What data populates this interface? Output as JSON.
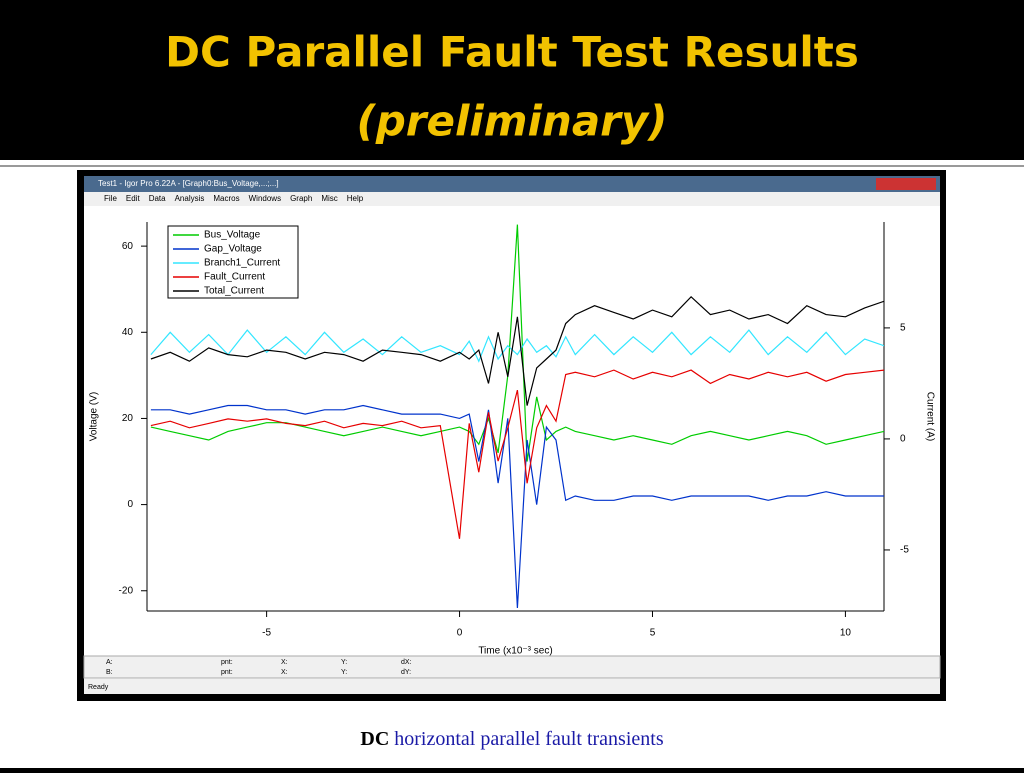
{
  "slide": {
    "title": "DC Parallel Fault Test Results",
    "subtitle": "(preliminary)",
    "caption_bold": "DC",
    "caption": "horizontal parallel fault transients"
  },
  "window": {
    "title": "Test1 - Igor Pro 6.22A - [Graph0:Bus_Voltage,...;...]",
    "menus": [
      "File",
      "Edit",
      "Data",
      "Analysis",
      "Macros",
      "Windows",
      "Graph",
      "Misc",
      "Help"
    ],
    "info": {
      "a": "A:",
      "b": "B:",
      "pnt": "pnt:",
      "x": "X:",
      "y": "Y:",
      "dx": "dX:",
      "dy": "dY:"
    },
    "status": "Ready"
  },
  "chart_data": {
    "type": "line",
    "xlabel": "Time (x10⁻³ sec)",
    "ylabel": "Voltage (V)",
    "y2label": "Current (A)",
    "x": [
      -8,
      -7.5,
      -7,
      -6.5,
      -6,
      -5.5,
      -5,
      -4.5,
      -4,
      -3.5,
      -3,
      -2.5,
      -2,
      -1.5,
      -1,
      -0.5,
      0,
      0.25,
      0.5,
      0.75,
      1,
      1.25,
      1.5,
      1.75,
      2,
      2.25,
      2.5,
      2.75,
      3,
      3.5,
      4,
      4.5,
      5,
      5.5,
      6,
      6.5,
      7,
      7.5,
      8,
      8.5,
      9,
      9.5,
      10,
      10.5,
      11
    ],
    "xlim": [
      -8.1,
      11
    ],
    "xticks": [
      -5,
      0,
      5,
      10
    ],
    "ylim": [
      -24.7,
      65.6
    ],
    "yticks": [
      -20,
      0,
      20,
      40,
      60
    ],
    "y2lim": [
      -7.75,
      9.77
    ],
    "y2ticks": [
      -5,
      0,
      5
    ],
    "series": [
      {
        "name": "Bus_Voltage",
        "color": "#00cc00",
        "values": [
          18,
          17,
          16,
          15,
          17,
          18,
          19,
          19,
          18,
          17,
          16,
          17,
          18,
          17,
          16,
          17,
          18,
          17,
          14,
          20,
          12,
          30,
          65,
          10,
          25,
          15,
          17,
          18,
          17,
          16,
          15,
          16,
          15,
          14,
          16,
          17,
          16,
          15,
          16,
          17,
          16,
          14,
          15,
          16,
          17
        ]
      },
      {
        "name": "Gap_Voltage",
        "color": "#0033cc",
        "values": [
          22,
          22,
          21,
          22,
          23,
          23,
          22,
          22,
          21,
          22,
          22,
          23,
          22,
          21,
          21,
          21,
          20,
          21,
          10,
          22,
          5,
          20,
          -24,
          15,
          0,
          18,
          15,
          1,
          2,
          1,
          1,
          2,
          2,
          1,
          2,
          2,
          2,
          2,
          1,
          2,
          2,
          3,
          2,
          2,
          2
        ]
      },
      {
        "name": "Branch1_Current",
        "color": "#33e6ff",
        "axis": "y2",
        "values": [
          3.8,
          4.8,
          3.9,
          4.7,
          3.8,
          4.9,
          3.9,
          4.6,
          3.8,
          4.8,
          3.9,
          4.5,
          3.8,
          4.6,
          3.9,
          4.2,
          3.8,
          4.4,
          3.5,
          4.6,
          3.6,
          4.2,
          3.8,
          4.5,
          3.9,
          4.2,
          3.7,
          4.6,
          3.8,
          4.7,
          3.8,
          4.6,
          3.9,
          4.8,
          3.8,
          4.6,
          3.9,
          4.9,
          3.8,
          4.6,
          3.9,
          4.8,
          3.8,
          4.5,
          4.2
        ]
      },
      {
        "name": "Fault_Current",
        "color": "#e60000",
        "axis": "y2",
        "values": [
          0.6,
          0.8,
          0.5,
          0.7,
          0.9,
          0.8,
          0.9,
          0.7,
          0.6,
          0.8,
          0.5,
          0.7,
          0.6,
          0.8,
          0.5,
          0.6,
          -4.5,
          0.7,
          -1.5,
          1.2,
          -1,
          0.5,
          2.2,
          -2,
          0.5,
          1.5,
          0.8,
          2.9,
          3,
          2.8,
          3.1,
          2.7,
          3,
          2.8,
          3.1,
          2.5,
          2.9,
          2.7,
          3,
          2.8,
          3,
          2.6,
          2.9,
          3,
          3.1
        ]
      },
      {
        "name": "Total_Current",
        "color": "#000000",
        "axis": "y2",
        "values": [
          3.6,
          3.9,
          3.5,
          4.1,
          3.8,
          3.7,
          4,
          3.9,
          3.6,
          3.9,
          3.8,
          3.5,
          4,
          3.9,
          3.8,
          3.5,
          3.9,
          3.6,
          4,
          2.5,
          4.8,
          2.8,
          5.5,
          1.5,
          3.2,
          3.6,
          4,
          5.2,
          5.6,
          6,
          5.7,
          5.4,
          5.8,
          5.5,
          6.4,
          5.6,
          5.8,
          5.4,
          5.6,
          5.2,
          6,
          5.6,
          5.5,
          5.9,
          6.2
        ]
      }
    ],
    "legend": "upper left",
    "grid": false
  }
}
